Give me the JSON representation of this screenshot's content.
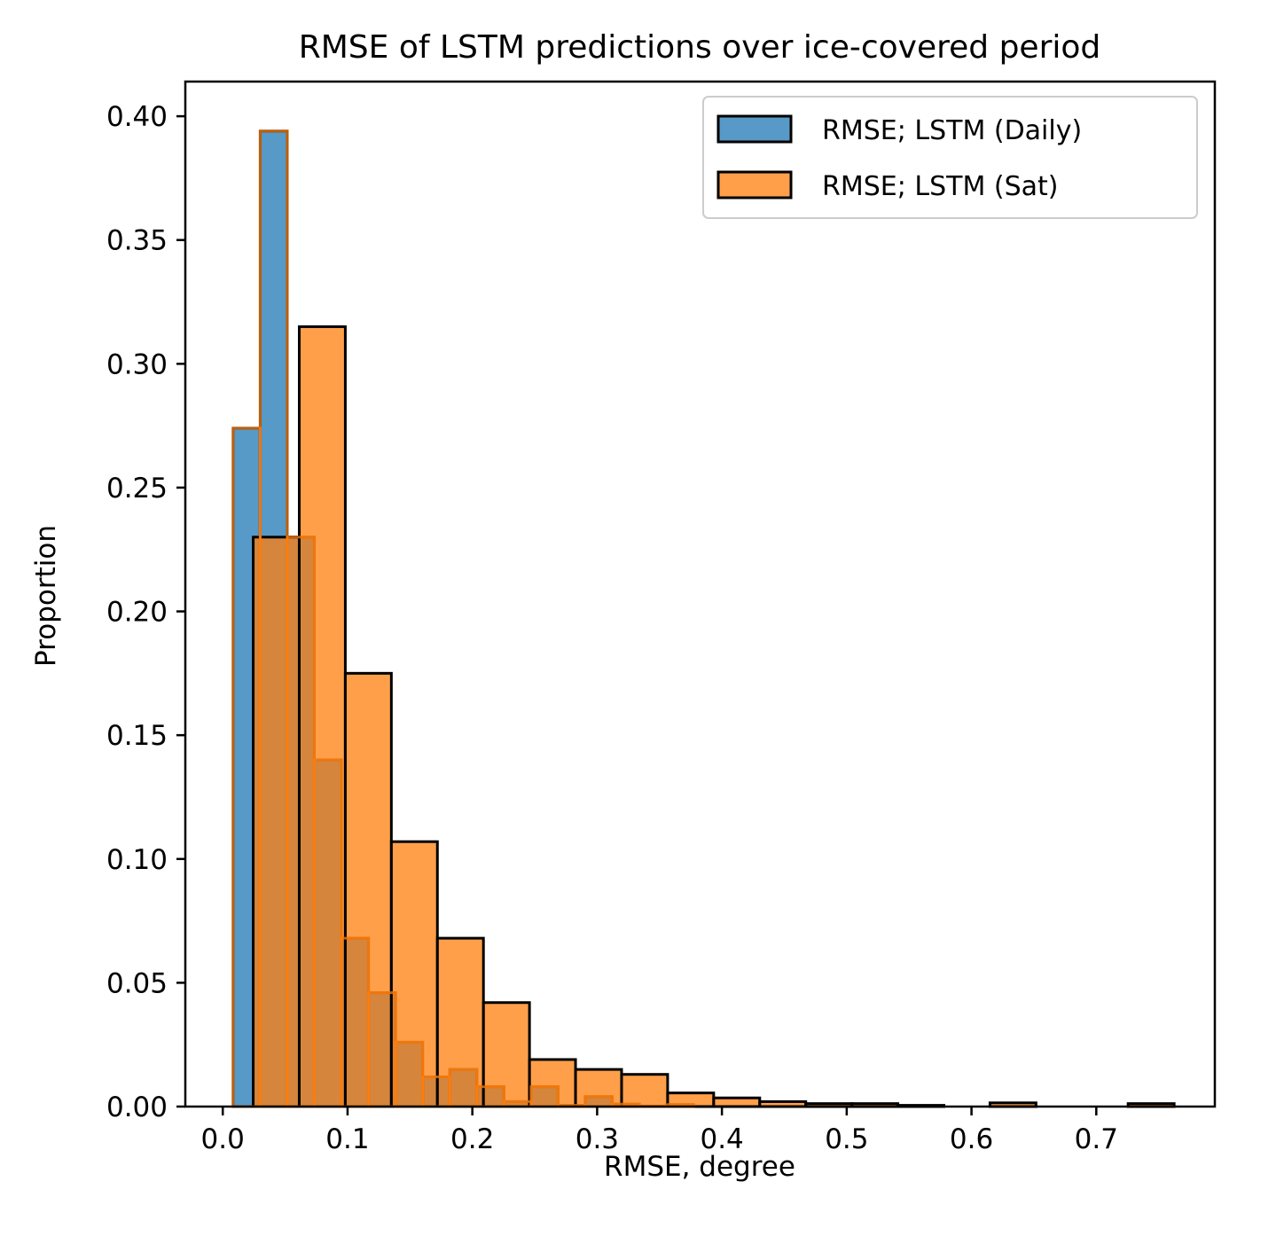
{
  "chart_data": {
    "type": "bar",
    "title": "RMSE of LSTM predictions over ice-covered period",
    "xlabel": "RMSE, degree",
    "ylabel": "Proportion",
    "xlim": [
      -0.03,
      0.795
    ],
    "ylim": [
      0,
      0.414
    ],
    "xticks": [
      {
        "value": 0.0,
        "label": "0.0"
      },
      {
        "value": 0.1,
        "label": "0.1"
      },
      {
        "value": 0.2,
        "label": "0.2"
      },
      {
        "value": 0.3,
        "label": "0.3"
      },
      {
        "value": 0.4,
        "label": "0.4"
      },
      {
        "value": 0.5,
        "label": "0.5"
      },
      {
        "value": 0.6,
        "label": "0.6"
      },
      {
        "value": 0.7,
        "label": "0.7"
      }
    ],
    "yticks": [
      {
        "value": 0.0,
        "label": "0.00"
      },
      {
        "value": 0.05,
        "label": "0.05"
      },
      {
        "value": 0.1,
        "label": "0.10"
      },
      {
        "value": 0.15,
        "label": "0.15"
      },
      {
        "value": 0.2,
        "label": "0.20"
      },
      {
        "value": 0.25,
        "label": "0.25"
      },
      {
        "value": 0.3,
        "label": "0.30"
      },
      {
        "value": 0.35,
        "label": "0.35"
      },
      {
        "value": 0.4,
        "label": "0.40"
      }
    ],
    "legend_position": "top-right",
    "grid": false,
    "series": [
      {
        "name": "RMSE; LSTM (Daily)",
        "color": "#1f77b4",
        "bin_start": 0.0083,
        "bin_width": 0.0217,
        "values": [
          0.274,
          0.394,
          0.23,
          0.14,
          0.068,
          0.046,
          0.026,
          0.012,
          0.015,
          0.008,
          0.002,
          0.008,
          0.0005,
          0.004,
          0.001,
          0.0002,
          0.0008
        ]
      },
      {
        "name": "RMSE; LSTM (Sat)",
        "color": "#ff7f0e",
        "bin_start": 0.0244,
        "bin_width": 0.0369,
        "values": [
          0.23,
          0.315,
          0.175,
          0.107,
          0.068,
          0.042,
          0.019,
          0.015,
          0.013,
          0.0055,
          0.0035,
          0.002,
          0.0012,
          0.0012,
          0.0005,
          0.0,
          0.0015,
          0.0,
          0.0,
          0.0012
        ]
      }
    ]
  }
}
